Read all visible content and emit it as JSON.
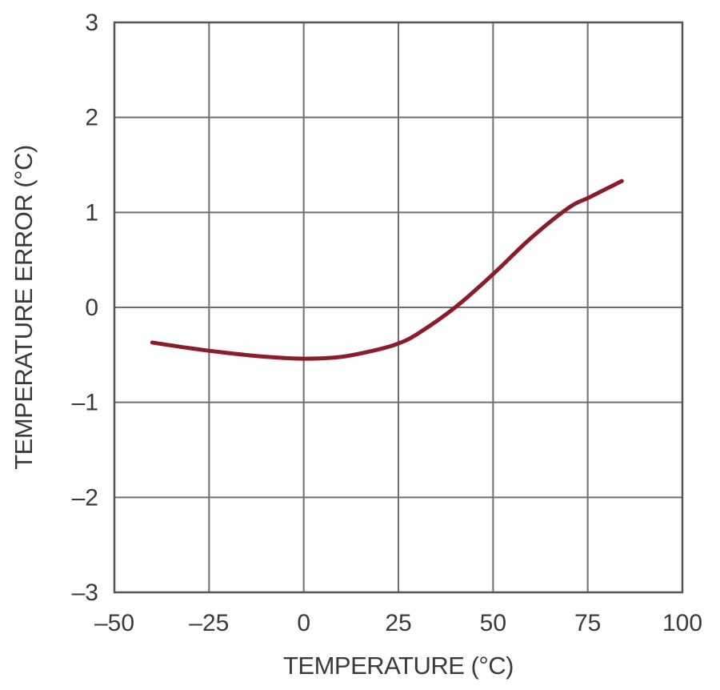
{
  "chart_data": {
    "type": "line",
    "title": "",
    "xlabel": "TEMPERATURE (°C)",
    "ylabel": "TEMPERATURE ERROR (°C)",
    "xlim": [
      -50,
      100
    ],
    "ylim": [
      -3,
      3
    ],
    "xticks": [
      -50,
      -25,
      0,
      25,
      50,
      75,
      100
    ],
    "yticks": [
      3,
      2,
      1,
      0,
      -1,
      -2,
      -3
    ],
    "xtick_labels": [
      "–50",
      "–25",
      "0",
      "25",
      "50",
      "75",
      "100"
    ],
    "ytick_labels": [
      "3",
      "2",
      "1",
      "0",
      "–1",
      "–2",
      "–3"
    ],
    "grid": true,
    "series": [
      {
        "color": "#8b1c2c",
        "x": [
          -40,
          -30,
          -20,
          -10,
          0,
          10,
          20,
          25,
          30,
          40,
          50,
          60,
          70,
          75,
          80,
          84
        ],
        "y": [
          -0.37,
          -0.43,
          -0.48,
          -0.52,
          -0.54,
          -0.52,
          -0.44,
          -0.38,
          -0.28,
          0.0,
          0.35,
          0.73,
          1.05,
          1.15,
          1.25,
          1.33
        ]
      }
    ]
  }
}
